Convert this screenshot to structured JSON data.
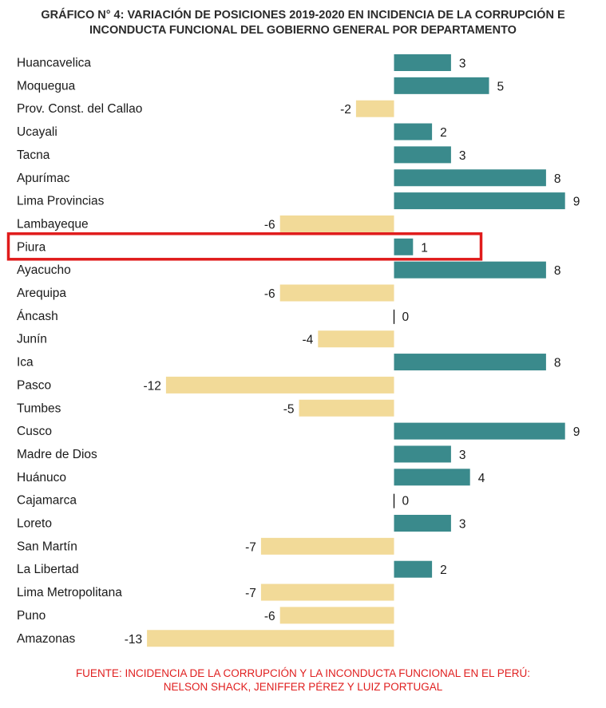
{
  "title_lines": [
    "GRÁFICO N° 4: VARIACIÓN DE POSICIONES 2019-2020 EN INCIDENCIA DE LA CORRUPCIÓN E",
    "INCONDUCTA FUNCIONAL DEL GOBIERNO GENERAL POR DEPARTAMENTO"
  ],
  "source_lines": [
    "FUENTE: INCIDENCIA DE LA CORRUPCIÓN Y LA INCONDUCTA FUNCIONAL EN EL PERÚ:",
    "NELSON SHACK, JENIFFER PÉREZ  Y LUIZ PORTUGAL"
  ],
  "colors": {
    "positive": "#3a8a8c",
    "negative": "#f2da98",
    "highlight": "#e01b1b",
    "text": "#1a1a1a",
    "source": "#e02020"
  },
  "chart_data": {
    "type": "bar",
    "orientation": "horizontal",
    "categories": [
      "Huancavelica",
      "Moquegua",
      "Prov. Const. del Callao",
      "Ucayali",
      "Tacna",
      "Apurímac",
      "Lima Provincias",
      "Lambayeque",
      "Piura",
      "Ayacucho",
      "Arequipa",
      "Áncash",
      "Junín",
      "Ica",
      "Pasco",
      "Tumbes",
      "Cusco",
      "Madre de Dios",
      "Huánuco",
      "Cajamarca",
      "Loreto",
      "San Martín",
      "La Libertad",
      "Lima Metropolitana",
      "Puno",
      "Amazonas"
    ],
    "values": [
      3,
      5,
      -2,
      2,
      3,
      8,
      9,
      -6,
      1,
      8,
      -6,
      0,
      -4,
      8,
      -12,
      -5,
      9,
      3,
      4,
      0,
      3,
      -7,
      2,
      -7,
      -6,
      -13
    ],
    "highlighted_category": "Piura",
    "xlim": [
      -13,
      9
    ],
    "grid": false,
    "legend": "none"
  }
}
